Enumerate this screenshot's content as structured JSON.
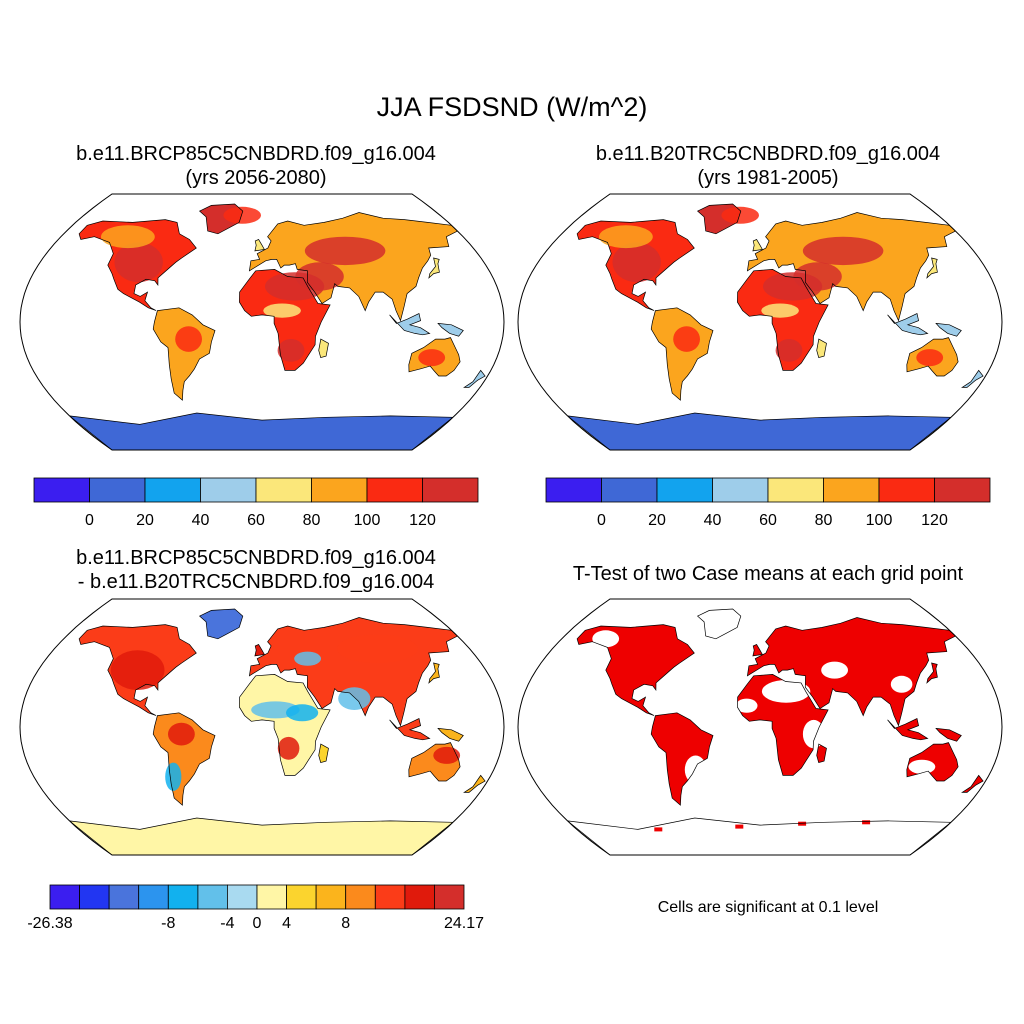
{
  "title": "JJA FSDSND (W/m^2)",
  "panels": [
    {
      "id": "p1",
      "title_line1": "b.e11.BRCP85C5CNBDRD.f09_g16.004",
      "title_line2": "(yrs 2056-2080)",
      "colorbar": {
        "colors": [
          "#3b1ef0",
          "#3f68d6",
          "#12a3ee",
          "#9ecdea",
          "#fbe77a",
          "#fba51e",
          "#fa2a12",
          "#d42e2b"
        ],
        "labels": [
          "0",
          "20",
          "40",
          "60",
          "80",
          "100",
          "120"
        ]
      }
    },
    {
      "id": "p2",
      "title_line1": "b.e11.B20TRC5CNBDRD.f09_g16.004",
      "title_line2": "(yrs 1981-2005)",
      "colorbar": {
        "colors": [
          "#3b1ef0",
          "#3f68d6",
          "#12a3ee",
          "#9ecdea",
          "#fbe77a",
          "#fba51e",
          "#fa2a12",
          "#d42e2b"
        ],
        "labels": [
          "0",
          "20",
          "40",
          "60",
          "80",
          "100",
          "120"
        ]
      }
    },
    {
      "id": "p3",
      "title_line1": "b.e11.BRCP85C5CNBDRD.f09_g16.004",
      "title_line2": "- b.e11.B20TRC5CNBDRD.f09_g16.004",
      "colorbar": {
        "colors": [
          "#3b1ef0",
          "#2236f2",
          "#4a74dc",
          "#2c94ee",
          "#12b1ee",
          "#62c0ea",
          "#a9daf0",
          "#fff6a6",
          "#fbd42e",
          "#fbb41c",
          "#fb8a1c",
          "#fb3c18",
          "#e01a0c",
          "#d42e2b"
        ],
        "labels": [
          "-26.38",
          "-8",
          "-4",
          "0",
          "4",
          "8",
          "24.17"
        ]
      }
    },
    {
      "id": "p4",
      "title_line1": "T-Test of two Case means at each grid point",
      "note": "Cells are significant at 0.1 level",
      "significant_color": "#ee0000"
    }
  ]
}
